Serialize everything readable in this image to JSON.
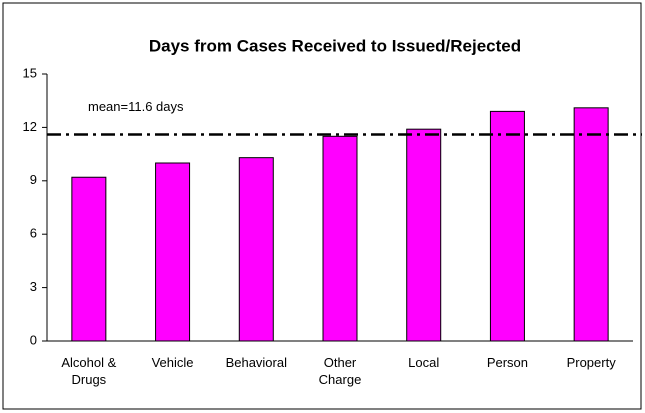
{
  "chart_data": {
    "type": "bar",
    "title": "Days from Cases Received to Issued/Rejected",
    "categories": [
      "Alcohol & Drugs",
      "Vehicle",
      "Behavioral",
      "Other Charge",
      "Local",
      "Person",
      "Property"
    ],
    "values": [
      9.2,
      10.0,
      10.3,
      11.5,
      11.9,
      12.9,
      13.1
    ],
    "color": "#ff00ff",
    "ylim": [
      0,
      15
    ],
    "yticks": [
      0,
      3,
      6,
      9,
      12,
      15
    ],
    "mean": 11.6,
    "mean_label": "mean=11.6 days"
  }
}
